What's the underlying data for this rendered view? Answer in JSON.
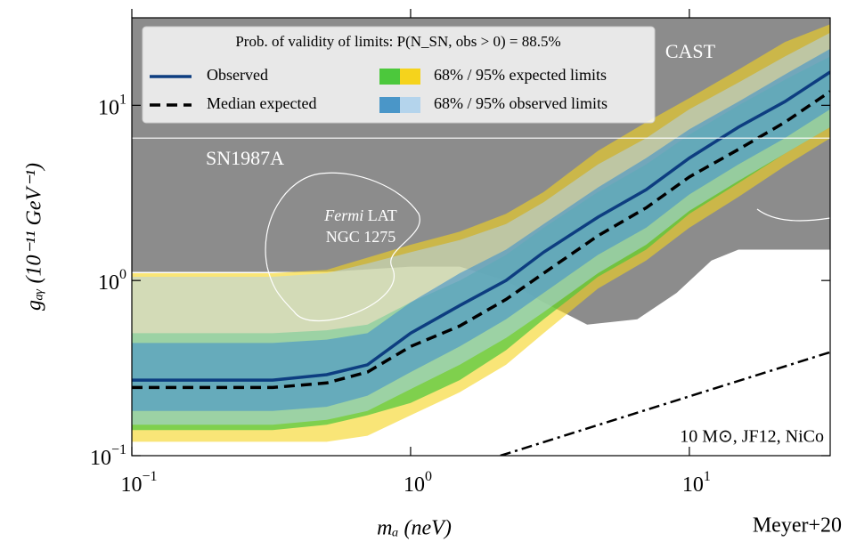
{
  "chart_data": {
    "type": "band",
    "xlabel": "mₐ (neV)",
    "ylabel": "gₐᵧ (10⁻¹¹ GeV⁻¹)",
    "xscale": "log",
    "yscale": "log",
    "xlim": [
      0.1,
      32
    ],
    "ylim": [
      0.1,
      31.6
    ],
    "xticks": [
      {
        "value": 0.1,
        "label": "10",
        "exponent": "−1"
      },
      {
        "value": 1,
        "label": "10",
        "exponent": "0"
      },
      {
        "value": 10,
        "label": "10",
        "exponent": "1"
      }
    ],
    "yticks": [
      {
        "value": 0.1,
        "label": "10",
        "exponent": "−1"
      },
      {
        "value": 1,
        "label": "10",
        "exponent": "0"
      },
      {
        "value": 10,
        "label": "10",
        "exponent": "1"
      }
    ],
    "legend_title": "Prob. of validity of limits: P(N_SN, obs > 0) = 88.5%",
    "legend_position": "upper left",
    "x": [
      0.1,
      0.2,
      0.32,
      0.5,
      0.7,
      1,
      1.5,
      2.2,
      3,
      4.7,
      7,
      10,
      15,
      22,
      32
    ],
    "bands": [
      {
        "name": "68% / 95% expected limits",
        "outer": {
          "color": "#f5d31c",
          "lower": [
            0.12,
            0.12,
            0.12,
            0.12,
            0.13,
            0.17,
            0.23,
            0.33,
            0.5,
            0.9,
            1.3,
            2.0,
            3.0,
            4.5,
            6.5
          ],
          "upper": [
            1.1,
            1.1,
            1.1,
            1.15,
            1.35,
            1.6,
            1.9,
            2.4,
            3.2,
            5.5,
            8,
            11,
            16,
            23,
            29
          ]
        },
        "inner": {
          "color": "#4cc83c",
          "lower": [
            0.14,
            0.14,
            0.14,
            0.15,
            0.17,
            0.2,
            0.27,
            0.4,
            0.6,
            1.05,
            1.5,
            2.4,
            3.6,
            5.3,
            7.5
          ],
          "upper": [
            0.5,
            0.5,
            0.5,
            0.52,
            0.56,
            0.75,
            1.0,
            1.4,
            2.0,
            3.2,
            4.6,
            6.8,
            10,
            14,
            19
          ]
        }
      },
      {
        "name": "68% / 95% observed limits",
        "outer": {
          "color": "#b4d4ec",
          "lower": [
            0.15,
            0.15,
            0.15,
            0.16,
            0.18,
            0.24,
            0.33,
            0.47,
            0.66,
            1.1,
            1.6,
            2.5,
            3.7,
            5.3,
            7.5
          ],
          "upper": [
            1.05,
            1.05,
            1.05,
            1.1,
            1.25,
            1.45,
            1.7,
            2.1,
            2.8,
            4.6,
            6.5,
            9.5,
            13.5,
            19,
            26
          ]
        },
        "inner": {
          "color": "#4a96c8",
          "lower": [
            0.18,
            0.18,
            0.18,
            0.19,
            0.22,
            0.3,
            0.42,
            0.6,
            0.85,
            1.4,
            2.0,
            3.1,
            4.6,
            6.5,
            9.5
          ],
          "upper": [
            0.44,
            0.44,
            0.44,
            0.46,
            0.5,
            0.75,
            1.1,
            1.5,
            2.1,
            3.4,
            5,
            7.3,
            10.5,
            15,
            21
          ]
        }
      }
    ],
    "series": [
      {
        "name": "Observed",
        "color": "#0d3d80",
        "dash": "solid",
        "values": [
          0.27,
          0.27,
          0.27,
          0.29,
          0.33,
          0.5,
          0.72,
          1.0,
          1.45,
          2.3,
          3.3,
          5.0,
          7.5,
          10.5,
          15.5
        ]
      },
      {
        "name": "Median expected",
        "color": "#000000",
        "dash": "dashed",
        "values": [
          0.245,
          0.245,
          0.245,
          0.26,
          0.3,
          0.42,
          0.55,
          0.78,
          1.1,
          1.8,
          2.6,
          3.9,
          5.6,
          8,
          12
        ]
      }
    ],
    "excluded_region": {
      "color": "#8c8c8c",
      "x": [
        0.1,
        0.5,
        1,
        1.5,
        2.2,
        3,
        4.3,
        6.5,
        9,
        12,
        15,
        32
      ],
      "lower": [
        1.12,
        1.12,
        1.2,
        1.2,
        1.0,
        0.75,
        0.56,
        0.6,
        0.85,
        1.3,
        1.5,
        1.5
      ]
    },
    "sn1987a_line": {
      "x": [
        0.1,
        32
      ],
      "values": [
        6.5,
        6.5
      ]
    },
    "prediction": {
      "x": [
        2.1,
        32
      ],
      "values": [
        0.1,
        0.39
      ]
    },
    "annotations": {
      "cast": "CAST",
      "sn1987a": "SN1987A",
      "fermi": "Fermi",
      "fermi_rest": " LAT",
      "ngc": "NGC 1275",
      "prediction": "10 M⊙, JF12, NiCo",
      "credit": "Meyer+20"
    }
  }
}
